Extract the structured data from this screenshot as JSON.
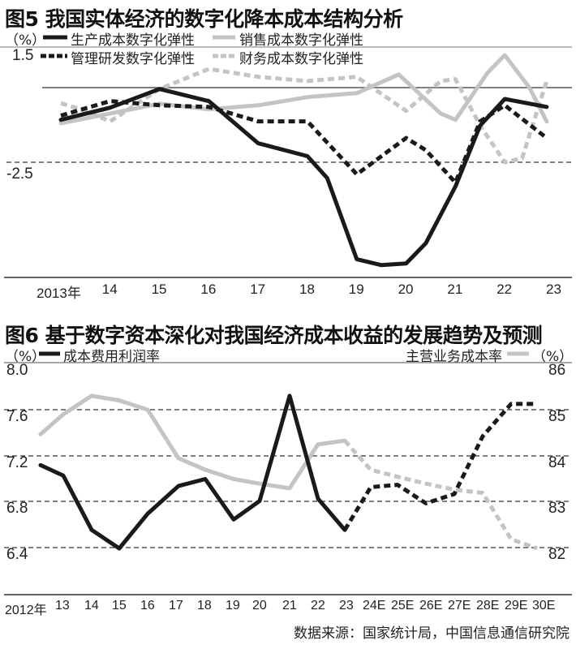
{
  "chart_data": [
    {
      "id": "fig5",
      "type": "line",
      "title": "图5 我国实体经济的数字化降本成本结构分析",
      "ylabel": "（%）",
      "yticks": [
        {
          "label": "1.5",
          "value": 1.5
        },
        {
          "label": "-2.5",
          "value": -2.5
        }
      ],
      "ylim": [
        -5.0,
        1.5
      ],
      "baseline_solid_value": 0.33,
      "categories": [
        "2013年",
        "14",
        "15",
        "16",
        "17",
        "18",
        "19",
        "20",
        "21",
        "22",
        "23"
      ],
      "series": [
        {
          "name": "生产成本数字化弹性",
          "style": "solid",
          "color": "#1a1a1a",
          "x": [
            2013,
            2014,
            2015,
            2016,
            2017,
            2018,
            2018.4,
            2019,
            2019.5,
            2020,
            2020.4,
            2021,
            2021.5,
            2022,
            2022.85
          ],
          "values": [
            -0.89,
            -0.43,
            0.28,
            -0.18,
            -1.78,
            -2.27,
            -3.1,
            -6.18,
            -6.4,
            -6.34,
            -5.57,
            -3.42,
            -1.11,
            -0.1,
            -0.4
          ]
        },
        {
          "name": "销售成本数字化弹性",
          "style": "solid",
          "color": "#c4c4c4",
          "x": [
            2013,
            2014,
            2015,
            2016,
            2017,
            2018,
            2019,
            2019.85,
            2020.7,
            2021,
            2021.65,
            2022,
            2022.5,
            2022.85
          ],
          "values": [
            -1.02,
            -0.65,
            -0.28,
            -0.49,
            -0.34,
            -0.03,
            0.12,
            0.83,
            -0.65,
            -0.89,
            0.89,
            1.56,
            0.33,
            -0.96
          ]
        },
        {
          "name": "管理研发数字化弹性",
          "style": "dashed",
          "color": "#1a1a1a",
          "x": [
            2013,
            2014,
            2015,
            2016,
            2017,
            2018,
            2019,
            2020,
            2020.4,
            2021,
            2021.5,
            2022,
            2022.85
          ],
          "values": [
            -0.73,
            -0.18,
            -0.34,
            -0.4,
            -0.95,
            -0.95,
            -2.96,
            -1.58,
            -2.04,
            -3.27,
            -0.95,
            -0.34,
            -1.58
          ]
        },
        {
          "name": "财务成本数字化弹性",
          "style": "dashed",
          "color": "#c4c4c4",
          "x": [
            2013,
            2013.4,
            2014,
            2015,
            2016,
            2017,
            2018,
            2019,
            2020,
            2020.7,
            2021,
            2021.5,
            2022,
            2022.35,
            2022.85
          ],
          "values": [
            -0.26,
            -0.49,
            -0.95,
            0.28,
            1.04,
            0.74,
            0.58,
            0.74,
            -0.55,
            0.58,
            0.65,
            -1.11,
            -2.5,
            -2.35,
            0.58
          ]
        }
      ]
    },
    {
      "id": "fig6",
      "type": "line",
      "title": "图6 基于数字资本深化对我国经济成本收益的发展趋势及预测",
      "ylabel_left": "（%）",
      "ylabel_right": "（%）",
      "yticks_left": [
        "8.0",
        "7.6",
        "7.2",
        "6.8",
        "6.4"
      ],
      "yticks_right": [
        "86",
        "85",
        "84",
        "83",
        "82"
      ],
      "ylim_left": [
        6.4,
        8.0
      ],
      "ylim_right": [
        82,
        86
      ],
      "categories": [
        "2012年",
        "13",
        "14",
        "15",
        "16",
        "17",
        "18",
        "19",
        "20",
        "21",
        "22",
        "23",
        "24E",
        "25E",
        "26E",
        "27E",
        "28E",
        "29E",
        "30E"
      ],
      "forecast_start_index": 11,
      "series": [
        {
          "name": "成本费用利润率",
          "axis": "left",
          "color": "#1a1a1a",
          "values": [
            7.12,
            7.03,
            6.56,
            6.4,
            6.7,
            6.94,
            7.0,
            6.65,
            6.81,
            7.72,
            6.83,
            6.56,
            6.93,
            6.95,
            6.79,
            6.87,
            7.37,
            7.65,
            7.65
          ]
        },
        {
          "name": "主营业务成本率",
          "axis": "right",
          "color": "#c4c4c4",
          "values": [
            84.47,
            84.9,
            85.3,
            85.2,
            85.0,
            83.95,
            83.7,
            83.5,
            83.4,
            83.3,
            84.25,
            84.33,
            83.7,
            83.55,
            83.4,
            83.27,
            83.2,
            82.2,
            82.0
          ]
        }
      ]
    }
  ],
  "fig5": {
    "title": "图5 我国实体经济的数字化降本成本结构分析",
    "unit": "（%）",
    "ytick_top": "1.5",
    "ytick_mid": "-2.5",
    "legend": [
      "生产成本数字化弹性",
      "销售成本数字化弹性",
      "管理研发数字化弹性",
      "财务成本数字化弹性"
    ],
    "xticks": [
      "2013年",
      "14",
      "15",
      "16",
      "17",
      "18",
      "19",
      "20",
      "21",
      "22",
      "23"
    ]
  },
  "fig6": {
    "title": "图6 基于数字资本深化对我国经济成本收益的发展趋势及预测",
    "unit_left": "（%）",
    "unit_right": "（%）",
    "legend_left": "成本费用利润率",
    "legend_right": "主营业务成本率",
    "yticks_left": [
      "8.0",
      "7.6",
      "7.2",
      "6.8",
      "6.4"
    ],
    "yticks_right": [
      "86",
      "85",
      "84",
      "83",
      "82"
    ],
    "xticks": [
      "2012年",
      "13",
      "14",
      "15",
      "16",
      "17",
      "18",
      "19",
      "20",
      "21",
      "22",
      "23",
      "24E",
      "25E",
      "26E",
      "27E",
      "28E",
      "29E",
      "30E"
    ]
  },
  "source": "数据来源：国家统计局，中国信息通信研究院",
  "colors": {
    "dark": "#1a1a1a",
    "light": "#c4c4c4",
    "axis": "#555555"
  }
}
